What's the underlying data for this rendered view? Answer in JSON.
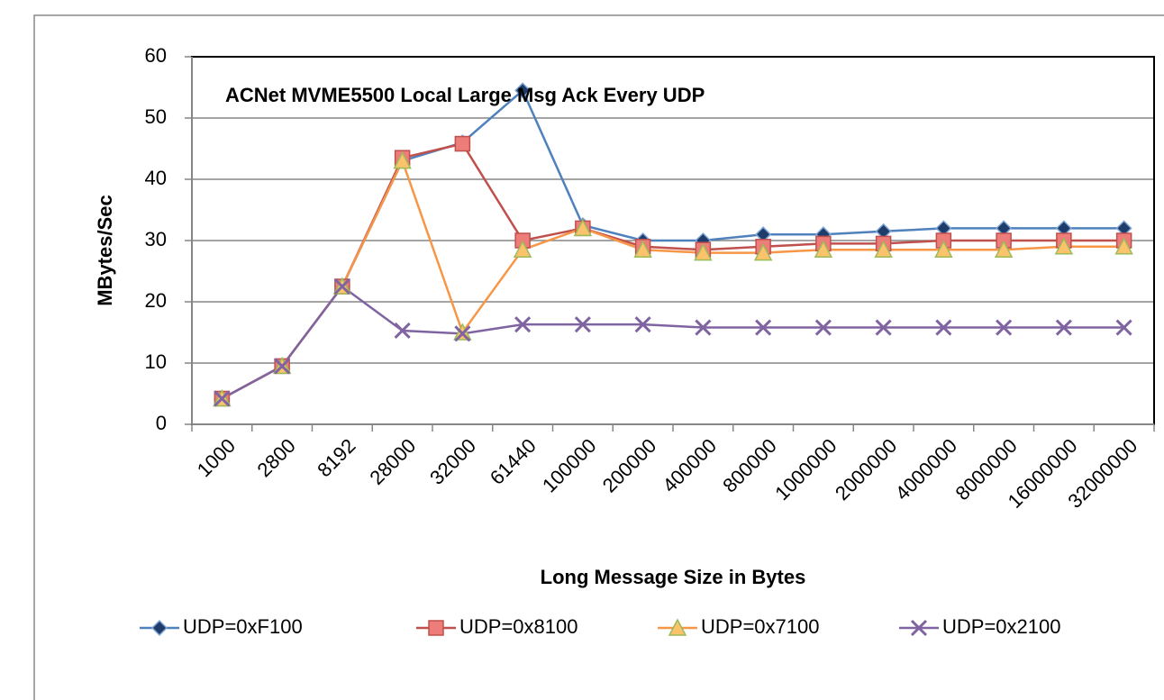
{
  "chart_data": {
    "type": "line",
    "title": "ACNet MVME5500 Local Large Msg Ack Every UDP",
    "x_label": "Long Message Size in Bytes",
    "y_label": "MBytes/Sec",
    "categories": [
      "1000",
      "2800",
      "8192",
      "28000",
      "32000",
      "61440",
      "100000",
      "200000",
      "400000",
      "800000",
      "1000000",
      "2000000",
      "4000000",
      "8000000",
      "16000000",
      "32000000"
    ],
    "series": [
      {
        "name": "UDP=0xF100",
        "color": "#4f81bd",
        "marker": "diamond",
        "values": [
          4.2,
          9.5,
          22.5,
          43,
          46,
          54.5,
          32.5,
          30,
          30,
          31,
          31,
          31.5,
          32,
          32,
          32,
          32
        ]
      },
      {
        "name": "UDP=0x8100",
        "color": "#c0504d",
        "marker": "square",
        "values": [
          4.2,
          9.5,
          22.5,
          43.5,
          45.8,
          30,
          32,
          29,
          28.5,
          29,
          29.5,
          29.5,
          30,
          30,
          30,
          30
        ]
      },
      {
        "name": "UDP=0x7100",
        "color": "#f79646",
        "marker": "triangle",
        "values": [
          4.2,
          9.5,
          22.5,
          43,
          15,
          28.5,
          32,
          28.5,
          28,
          28,
          28.5,
          28.5,
          28.5,
          28.5,
          29,
          29
        ]
      },
      {
        "name": "UDP=0x2100",
        "color": "#8064a2",
        "marker": "x",
        "values": [
          4.2,
          9.5,
          22.5,
          15.3,
          14.8,
          16.3,
          16.3,
          16.3,
          15.8,
          15.8,
          15.8,
          15.8,
          15.8,
          15.8,
          15.8,
          15.8
        ]
      }
    ],
    "ylim": [
      0,
      60
    ],
    "yticks": [
      0,
      10,
      20,
      30,
      40,
      50,
      60
    ],
    "grid": true,
    "legend": "bottom"
  }
}
